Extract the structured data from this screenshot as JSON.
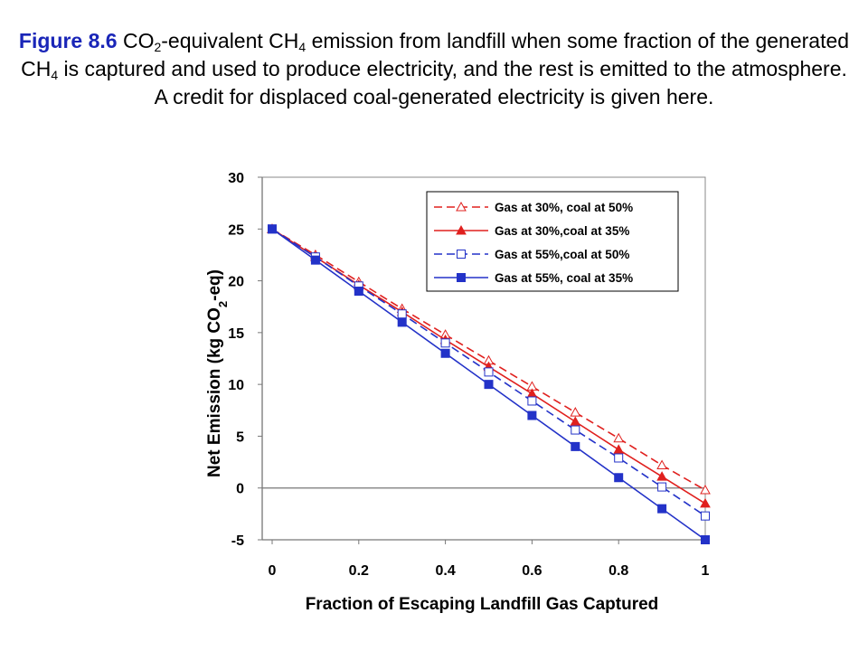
{
  "caption": {
    "lead": "Figure 8.6",
    "parts": [
      {
        "t": " CO"
      },
      {
        "sub": "2"
      },
      {
        "t": "-equivalent CH"
      },
      {
        "sub": "4"
      },
      {
        "t": " emission from landfill when some fraction of the generated CH"
      },
      {
        "sub": "4"
      },
      {
        "t": " is captured and used to produce electricity, and the rest is emitted to the atmosphere. A credit for displaced coal-generated electricity is given here."
      }
    ]
  },
  "chart_data": {
    "type": "line",
    "xlabel": "Fraction of Escaping Landfill Gas Captured",
    "ylabel": {
      "pre": "Net Emission (kg CO",
      "sub": "2",
      "post": "-eq)"
    },
    "xlim": [
      0,
      1
    ],
    "ylim": [
      -5,
      30
    ],
    "xticks": [
      "0",
      "0.2",
      "0.4",
      "0.6",
      "0.8",
      "1"
    ],
    "yticks": [
      "30",
      "25",
      "20",
      "15",
      "10",
      "5",
      "0",
      "-5"
    ],
    "grid": false,
    "legend_position": "top-right",
    "x": [
      0,
      0.1,
      0.2,
      0.3,
      0.4,
      0.5,
      0.6,
      0.7,
      0.8,
      0.9,
      1.0
    ],
    "series": [
      {
        "name": "Gas at 30%, coal at 50%",
        "color": "#e0201e",
        "dash": true,
        "marker": "triangle-open",
        "values": [
          25,
          22.5,
          19.9,
          17.3,
          14.8,
          12.3,
          9.8,
          7.3,
          4.8,
          2.2,
          -0.2
        ]
      },
      {
        "name": "Gas at 30%,coal at 35%",
        "color": "#e0201e",
        "dash": false,
        "marker": "triangle-filled",
        "values": [
          25,
          22.3,
          19.6,
          17.0,
          14.3,
          11.7,
          9.1,
          6.4,
          3.7,
          1.1,
          -1.5
        ]
      },
      {
        "name": "Gas at 55%,coal at 50%",
        "color": "#2332c8",
        "dash": true,
        "marker": "square-open",
        "values": [
          25,
          22.3,
          19.5,
          16.8,
          14.0,
          11.2,
          8.4,
          5.6,
          2.9,
          0.1,
          -2.7
        ]
      },
      {
        "name": "Gas at 55%, coal at 35%",
        "color": "#2332c8",
        "dash": false,
        "marker": "square-filled",
        "values": [
          25,
          22.0,
          19.0,
          16.0,
          13.0,
          10.0,
          7.0,
          4.0,
          1.0,
          -2.0,
          -5.0
        ]
      }
    ]
  }
}
